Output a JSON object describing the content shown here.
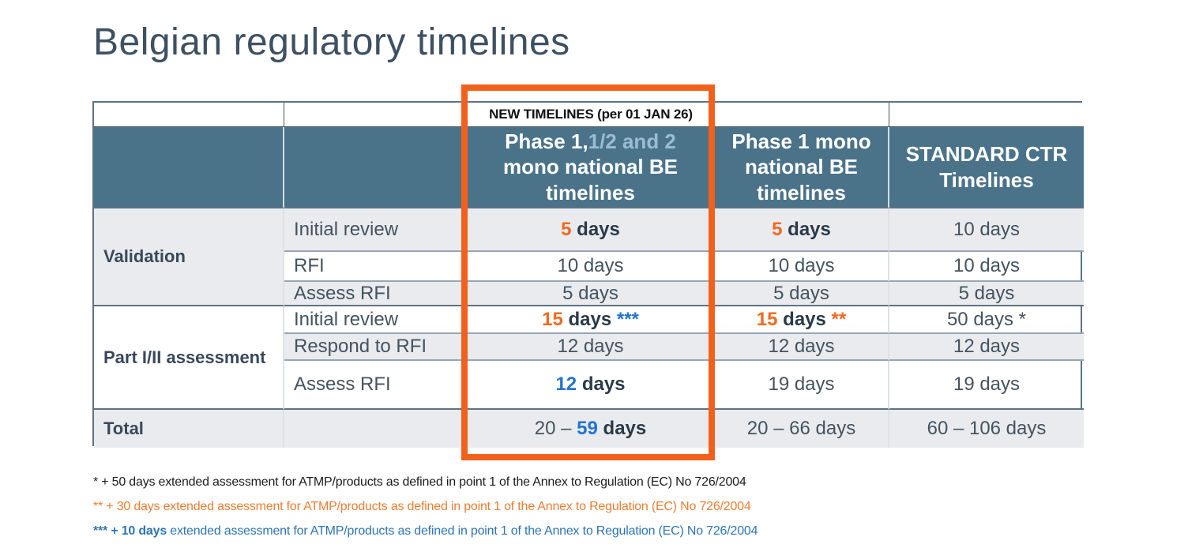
{
  "slide": {
    "title": "Belgian regulatory timelines"
  },
  "banner": {
    "label": "NEW TIMELINES (per 01 JAN 26)"
  },
  "header": {
    "col_new": {
      "line1_main": "Phase 1,",
      "line1_alt": "1/2 and 2",
      "rest": "mono national BE timelines"
    },
    "col_phase1": "Phase 1 mono national BE timelines",
    "col_standard": "STANDARD CTR Timelines"
  },
  "groups": {
    "validation": "Validation",
    "part": "Part I/II assessment",
    "total": "Total"
  },
  "labels": {
    "initial_review": "Initial review",
    "rfi": "RFI",
    "assess_rfi": "Assess RFI",
    "respond_rfi": "Respond to RFI"
  },
  "values": {
    "val_init": {
      "new_num": "5",
      "new_days": " days",
      "mono_num": "5",
      "mono_days": " days",
      "std": "10 days"
    },
    "val_rfi": {
      "new": "10 days",
      "mono": "10 days",
      "std": "10 days"
    },
    "val_assess": {
      "new": "5 days",
      "mono": "5 days",
      "std": "5 days"
    },
    "part_init": {
      "new_num": "15",
      "new_days": " days",
      "new_note": " ***",
      "mono_num": "15",
      "mono_days": " days",
      "mono_note": " **",
      "std": "50 days *"
    },
    "part_respond": {
      "new": "12 days",
      "mono": "12 days",
      "std": "12 days"
    },
    "part_assess": {
      "new_num": "12",
      "new_days": " days",
      "mono": "19 days",
      "std": "19 days"
    },
    "total": {
      "new_pre": "20 – ",
      "new_num": "59",
      "new_days": " days",
      "mono": "20 – 66 days",
      "std": "60 – 106 days"
    }
  },
  "footnotes": {
    "f1": "* + 50 days extended assessment for ATMP/products as defined in point 1 of the Annex to Regulation (EC) No 726/2004",
    "f2": "** + 30 days extended assessment for ATMP/products as defined in point 1 of the Annex to Regulation (EC) No 726/2004",
    "f3_bold": "*** + 10 days",
    "f3_rest": " extended assessment for ATMP/products as defined in point 1 of the Annex to Regulation (EC) No 726/2004"
  },
  "colors": {
    "header_blue": "#4A7389",
    "header_alt_blue": "#9BBCD3",
    "highlight_orange": "#F2611C",
    "accent_orange": "#F2691E",
    "accent_blue": "#2573CE",
    "footnote_orange": "#ED7D31",
    "footnote_blue": "#2E74B5",
    "stripe_gray": "#E9EBEE",
    "title_dark": "#3E5063"
  }
}
